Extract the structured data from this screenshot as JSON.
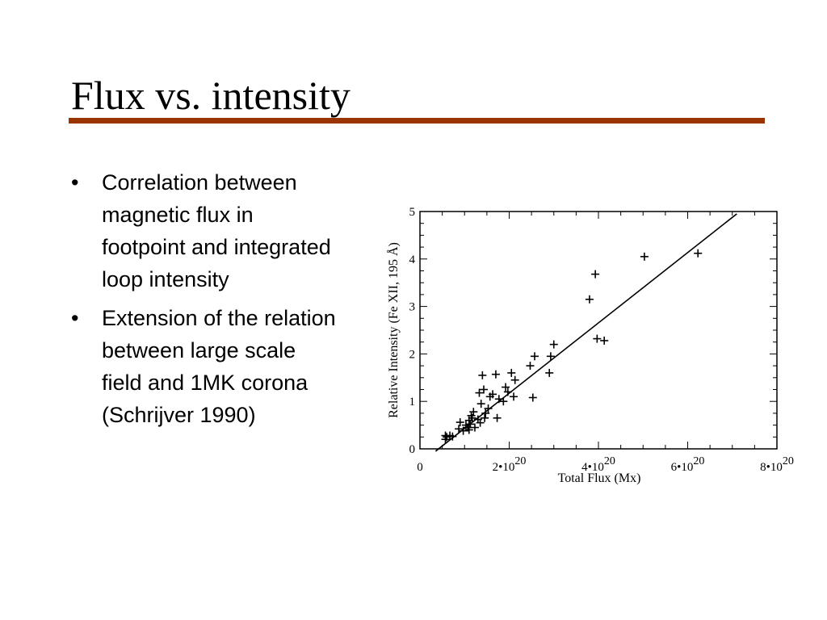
{
  "slide": {
    "title": "Flux vs. intensity",
    "rule_color": "#993300",
    "bullets": [
      "Correlation between\nmagnetic flux in\nfootpoint and integrated\nloop intensity",
      "Extension of the relation\nbetween large scale\nfield and 1MK corona\n(Schrijver 1990)"
    ]
  },
  "chart_data": {
    "type": "scatter",
    "title": "",
    "xlabel": "Total Flux (Mx)",
    "ylabel": "Relative Intensity (Fe XII, 195 Å)",
    "xlim": [
      0,
      8
    ],
    "ylim": [
      0,
      5
    ],
    "x_unit_factor": "10^20",
    "x_ticks": [
      {
        "value": 0,
        "base": "0",
        "exp": ""
      },
      {
        "value": 2,
        "base": "2•10",
        "exp": "20"
      },
      {
        "value": 4,
        "base": "4•10",
        "exp": "20"
      },
      {
        "value": 6,
        "base": "6•10",
        "exp": "20"
      },
      {
        "value": 8,
        "base": "8•10",
        "exp": "20"
      }
    ],
    "y_ticks": [
      "0",
      "1",
      "2",
      "3",
      "4",
      "5"
    ],
    "fit_line": {
      "x": [
        0.35,
        7.1
      ],
      "y": [
        -0.05,
        4.95
      ]
    },
    "points": [
      [
        0.57,
        0.2
      ],
      [
        0.57,
        0.28
      ],
      [
        0.6,
        0.25
      ],
      [
        0.67,
        0.28
      ],
      [
        0.73,
        0.26
      ],
      [
        0.87,
        0.42
      ],
      [
        0.9,
        0.56
      ],
      [
        0.97,
        0.38
      ],
      [
        1.03,
        0.5
      ],
      [
        1.07,
        0.45
      ],
      [
        1.1,
        0.4
      ],
      [
        1.1,
        0.6
      ],
      [
        1.13,
        0.52
      ],
      [
        1.15,
        0.7
      ],
      [
        1.17,
        0.65
      ],
      [
        1.2,
        0.78
      ],
      [
        1.23,
        0.45
      ],
      [
        1.3,
        0.62
      ],
      [
        1.33,
        1.18
      ],
      [
        1.35,
        0.55
      ],
      [
        1.37,
        0.95
      ],
      [
        1.4,
        1.55
      ],
      [
        1.43,
        1.25
      ],
      [
        1.45,
        0.65
      ],
      [
        1.47,
        0.75
      ],
      [
        1.53,
        0.85
      ],
      [
        1.57,
        1.1
      ],
      [
        1.63,
        1.15
      ],
      [
        1.7,
        1.57
      ],
      [
        1.73,
        0.65
      ],
      [
        1.77,
        1.05
      ],
      [
        1.87,
        1.0
      ],
      [
        1.92,
        1.3
      ],
      [
        1.97,
        1.2
      ],
      [
        2.05,
        1.6
      ],
      [
        2.1,
        1.1
      ],
      [
        2.13,
        1.45
      ],
      [
        2.47,
        1.75
      ],
      [
        2.53,
        1.08
      ],
      [
        2.57,
        1.95
      ],
      [
        2.9,
        1.6
      ],
      [
        2.93,
        1.95
      ],
      [
        3.0,
        2.2
      ],
      [
        3.8,
        3.15
      ],
      [
        3.93,
        3.68
      ],
      [
        3.97,
        2.32
      ],
      [
        4.13,
        2.28
      ],
      [
        5.03,
        4.05
      ],
      [
        6.23,
        4.12
      ]
    ]
  }
}
